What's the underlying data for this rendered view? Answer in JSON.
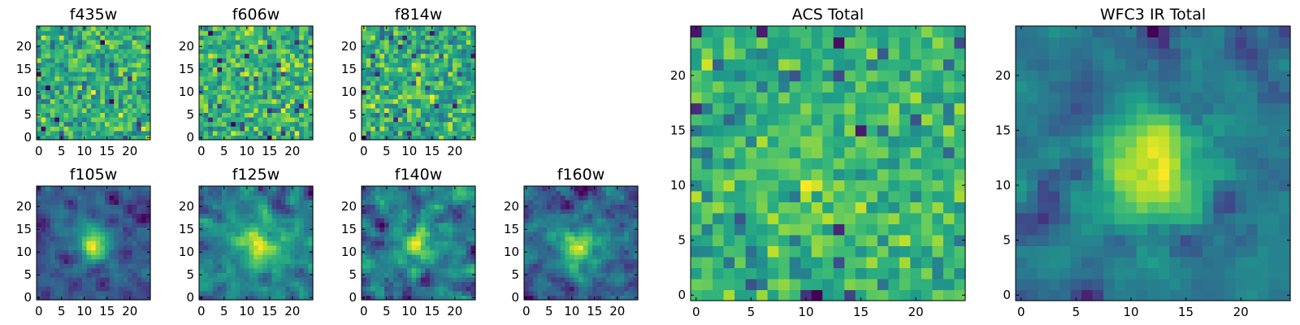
{
  "chart_data": [
    {
      "type": "heatmap",
      "title": "f435w",
      "x_ticks": [
        "0",
        "5",
        "10",
        "15",
        "20"
      ],
      "y_ticks": [
        "0",
        "5",
        "10",
        "15",
        "20"
      ],
      "xlim": [
        -0.5,
        24.5
      ],
      "ylim": [
        -0.5,
        24.5
      ],
      "grid_size": [
        25,
        25
      ],
      "colormap": "viridis",
      "pattern": "noise"
    },
    {
      "type": "heatmap",
      "title": "f606w",
      "x_ticks": [
        "0",
        "5",
        "10",
        "15",
        "20"
      ],
      "y_ticks": [
        "0",
        "5",
        "10",
        "15",
        "20"
      ],
      "xlim": [
        -0.5,
        24.5
      ],
      "ylim": [
        -0.5,
        24.5
      ],
      "grid_size": [
        25,
        25
      ],
      "colormap": "viridis",
      "pattern": "noise"
    },
    {
      "type": "heatmap",
      "title": "f814w",
      "x_ticks": [
        "0",
        "5",
        "10",
        "15",
        "20"
      ],
      "y_ticks": [
        "0",
        "5",
        "10",
        "15",
        "20"
      ],
      "xlim": [
        -0.5,
        24.5
      ],
      "ylim": [
        -0.5,
        24.5
      ],
      "grid_size": [
        25,
        25
      ],
      "colormap": "viridis",
      "pattern": "noise with faint central source"
    },
    {
      "type": "heatmap",
      "title": "f105w",
      "x_ticks": [
        "0",
        "5",
        "10",
        "15",
        "20"
      ],
      "y_ticks": [
        "0",
        "5",
        "10",
        "15",
        "20"
      ],
      "xlim": [
        -0.5,
        24.5
      ],
      "ylim": [
        -0.5,
        24.5
      ],
      "grid_size": [
        25,
        25
      ],
      "colormap": "viridis",
      "pattern": "central source"
    },
    {
      "type": "heatmap",
      "title": "f125w",
      "x_ticks": [
        "0",
        "5",
        "10",
        "15",
        "20"
      ],
      "y_ticks": [
        "0",
        "5",
        "10",
        "15",
        "20"
      ],
      "xlim": [
        -0.5,
        24.5
      ],
      "ylim": [
        -0.5,
        24.5
      ],
      "grid_size": [
        25,
        25
      ],
      "colormap": "viridis",
      "pattern": "central source"
    },
    {
      "type": "heatmap",
      "title": "f140w",
      "x_ticks": [
        "0",
        "5",
        "10",
        "15",
        "20"
      ],
      "y_ticks": [
        "0",
        "5",
        "10",
        "15",
        "20"
      ],
      "xlim": [
        -0.5,
        24.5
      ],
      "ylim": [
        -0.5,
        24.5
      ],
      "grid_size": [
        25,
        25
      ],
      "colormap": "viridis",
      "pattern": "central source"
    },
    {
      "type": "heatmap",
      "title": "f160w",
      "x_ticks": [
        "0",
        "5",
        "10",
        "15",
        "20"
      ],
      "y_ticks": [
        "0",
        "5",
        "10",
        "15",
        "20"
      ],
      "xlim": [
        -0.5,
        24.5
      ],
      "ylim": [
        -0.5,
        24.5
      ],
      "grid_size": [
        25,
        25
      ],
      "colormap": "viridis",
      "pattern": "central source"
    },
    {
      "type": "heatmap",
      "title": "ACS Total",
      "x_ticks": [
        "0",
        "5",
        "10",
        "15",
        "20"
      ],
      "y_ticks": [
        "0",
        "5",
        "10",
        "15",
        "20"
      ],
      "xlim": [
        -0.5,
        24.5
      ],
      "ylim": [
        -0.5,
        24.5
      ],
      "grid_size": [
        25,
        25
      ],
      "colormap": "viridis",
      "pattern": "noise with faint central source"
    },
    {
      "type": "heatmap",
      "title": "WFC3 IR Total",
      "x_ticks": [
        "0",
        "5",
        "10",
        "15",
        "20"
      ],
      "y_ticks": [
        "0",
        "5",
        "10",
        "15",
        "20"
      ],
      "xlim": [
        -0.5,
        24.5
      ],
      "ylim": [
        -0.5,
        24.5
      ],
      "grid_size": [
        25,
        25
      ],
      "colormap": "viridis",
      "pattern": "strong central source"
    }
  ]
}
